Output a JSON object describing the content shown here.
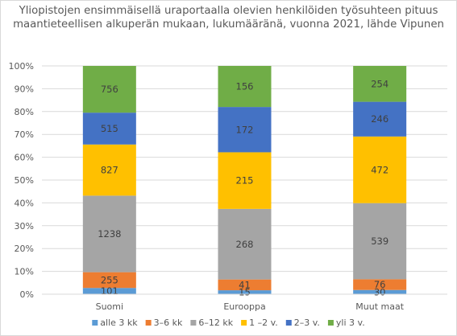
{
  "chart_data": {
    "type": "bar",
    "stacked": "percent",
    "title": "Yliopistojen ensimmäisellä uraportaalla olevien henkilöiden työsuhteen pituus maantieteellisen alkuperän mukaan, lukumääränä, vuonna 2021, lähde Vipunen",
    "categories": [
      "Suomi",
      "Eurooppa",
      "Muut maat"
    ],
    "y_ticks": [
      "0%",
      "10%",
      "20%",
      "30%",
      "40%",
      "50%",
      "60%",
      "70%",
      "80%",
      "90%",
      "100%"
    ],
    "ylim": [
      0,
      100
    ],
    "legend_position": "bottom",
    "grid": true,
    "series": [
      {
        "name": "alle 3 kk",
        "color": "#5B9BD5",
        "values": [
          101,
          15,
          30
        ]
      },
      {
        "name": "3–6 kk",
        "color": "#ED7D31",
        "values": [
          255,
          41,
          76
        ]
      },
      {
        "name": "6–12 kk",
        "color": "#A5A5A5",
        "values": [
          1238,
          268,
          539
        ]
      },
      {
        "name": "1 –2 v.",
        "color": "#FFC000",
        "values": [
          827,
          215,
          472
        ]
      },
      {
        "name": "2–3 v.",
        "color": "#4472C4",
        "values": [
          515,
          172,
          246
        ]
      },
      {
        "name": "yli  3 v.",
        "color": "#70AD47",
        "values": [
          756,
          156,
          254
        ]
      }
    ]
  }
}
